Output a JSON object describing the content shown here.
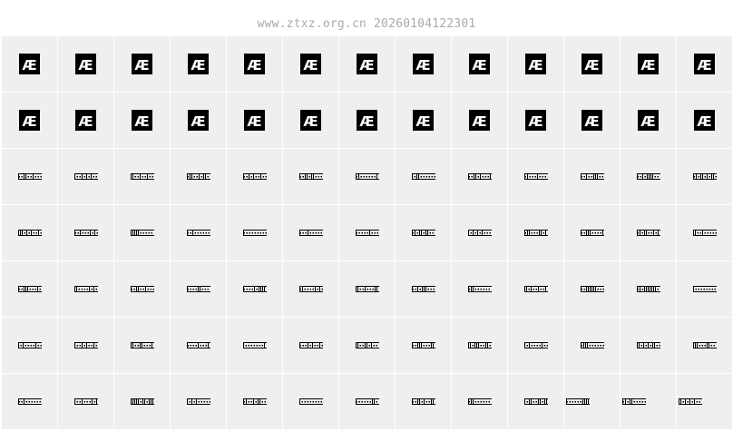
{
  "header": {
    "title": "www.ztxz.org.cn 20260104122301"
  },
  "grid": {
    "columns": 13,
    "rows": [
      {
        "glyph": "ae-stamp-icon",
        "label": "Æ"
      },
      {
        "glyph": "ae-stamp-icon",
        "label": "Æ"
      },
      {
        "glyph": "barcode-glyph-icon"
      },
      {
        "glyph": "barcode-glyph-icon"
      },
      {
        "glyph": "barcode-glyph-icon"
      },
      {
        "glyph": "barcode-glyph-icon"
      },
      {
        "glyph": "barcode-glyph-icon"
      }
    ]
  },
  "colors": {
    "cell": "#efefef",
    "glyph": "#000000",
    "title": "#aaaaaa"
  }
}
